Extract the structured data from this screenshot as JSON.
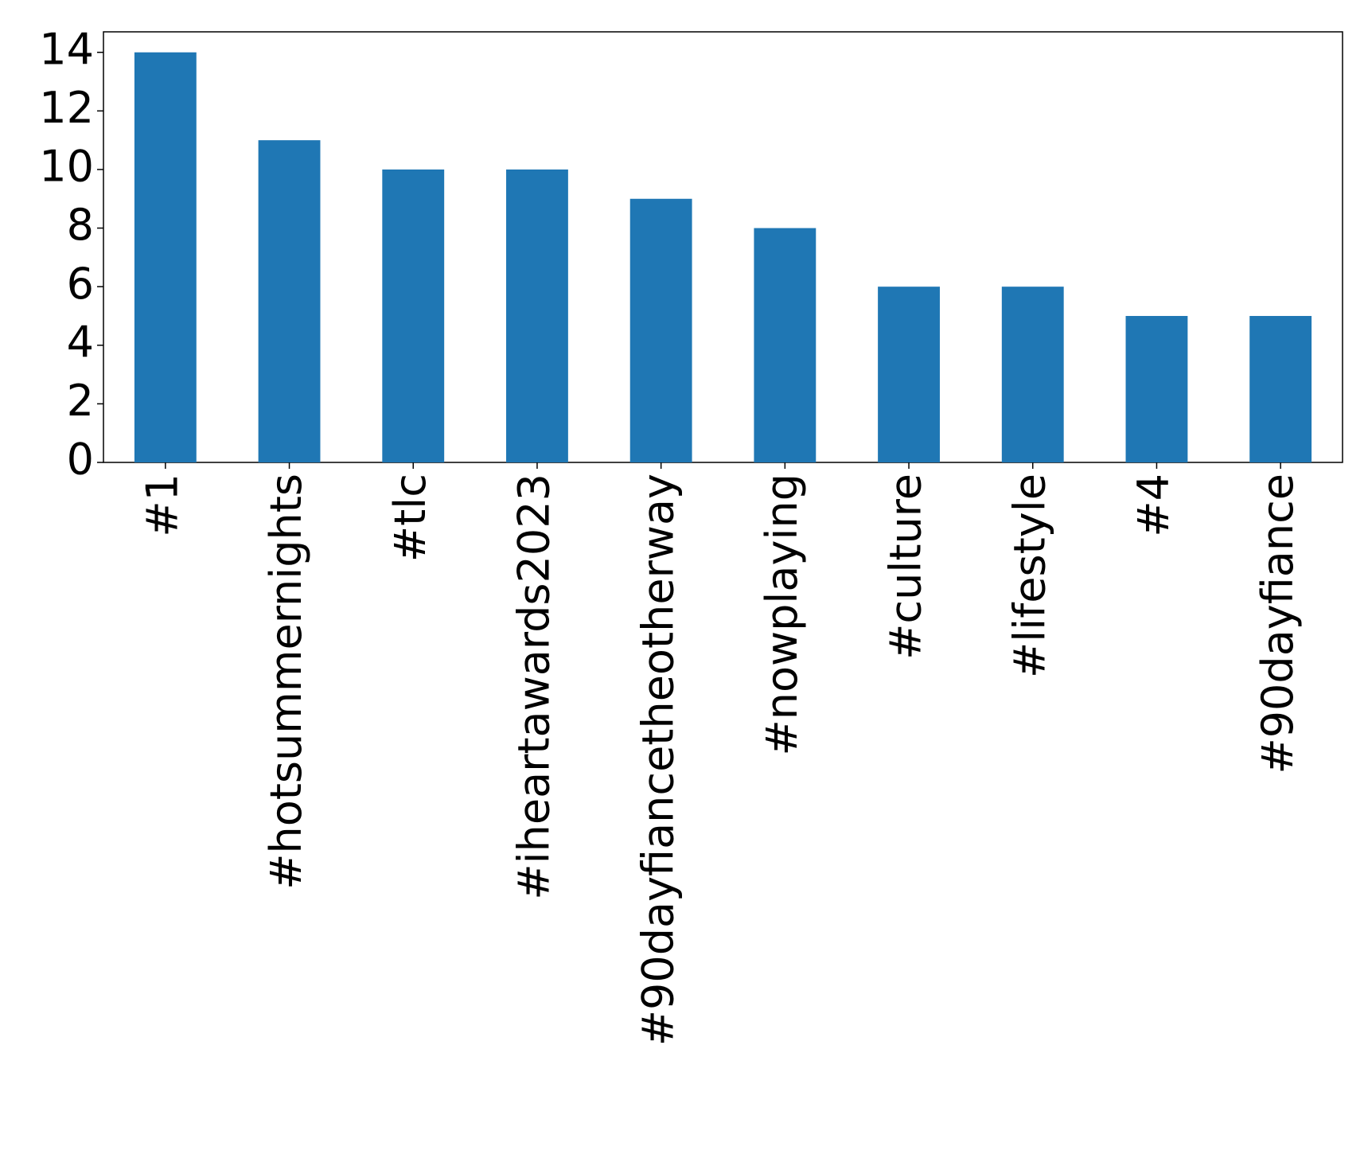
{
  "chart_data": {
    "type": "bar",
    "categories": [
      "#1",
      "#hotsummernights",
      "#tlc",
      "#iheartawards2023",
      "#90dayfiancetheotherway",
      "#nowplaying",
      "#culture",
      "#lifestyle",
      "#4",
      "#90dayfiance"
    ],
    "values": [
      14,
      11,
      10,
      10,
      9,
      8,
      6,
      6,
      5,
      5
    ],
    "color": "#1f77b4",
    "ylim": [
      0,
      14.7
    ],
    "yticks": [
      0,
      2,
      4,
      6,
      8,
      10,
      12,
      14
    ],
    "grid": false
  }
}
